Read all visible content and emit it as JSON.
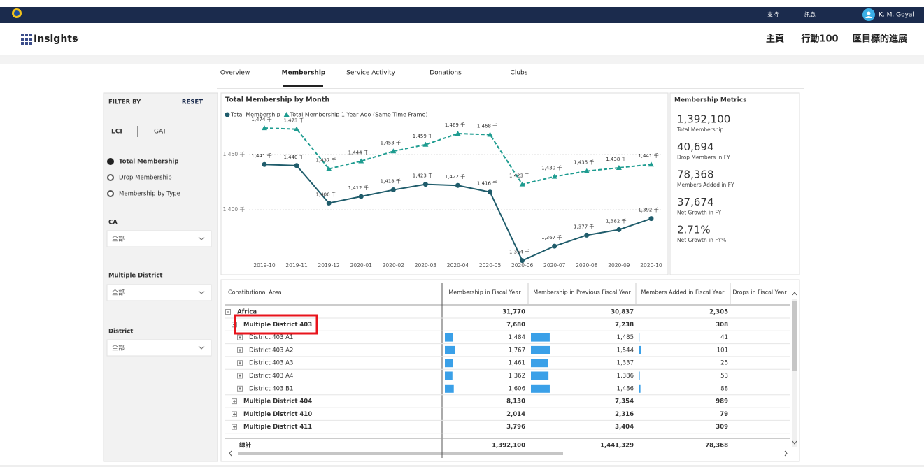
{
  "top_bar": {
    "links": [
      "支持",
      "訊息"
    ],
    "user": "K. M. Goyal"
  },
  "app": {
    "name": "Insights",
    "nav": [
      "主頁",
      "行動100",
      "區目標的進展"
    ]
  },
  "tabs": [
    "Overview",
    "Membership",
    "Service Activity",
    "Donations",
    "Clubs"
  ],
  "filter": {
    "title": "FILTER BY",
    "reset": "RESET",
    "toggle": [
      "LCI",
      "GAT"
    ],
    "options": [
      "Total Membership",
      "Drop Membership",
      "Membership by Type"
    ],
    "dropdowns": [
      {
        "label": "CA",
        "value": "全部"
      },
      {
        "label": "Multiple District",
        "value": "全部"
      },
      {
        "label": "District",
        "value": "全部"
      }
    ]
  },
  "chart_data": {
    "type": "line",
    "title": "Total Membership by Month",
    "categories": [
      "2019-10",
      "2019-11",
      "2019-12",
      "2020-01",
      "2020-02",
      "2020-03",
      "2020-04",
      "2020-05",
      "2020-06",
      "2020-07",
      "2020-08",
      "2020-09",
      "2020-10"
    ],
    "series": [
      {
        "name": "Total Membership",
        "color": "#1f5c6b",
        "marker": "circle",
        "style": "solid",
        "values": [
          1441,
          1440,
          1406,
          1412,
          1418,
          1423,
          1422,
          1416,
          1354,
          1367,
          1377,
          1382,
          1392
        ],
        "value_labels": [
          "1,441 千",
          "1,440 千",
          "1,406 千",
          "1,412 千",
          "1,418 千",
          "1,423 千",
          "1,422 千",
          "1,416 千",
          "1,354 千",
          "1,367 千",
          "1,377 千",
          "1,382 千",
          "1,392 千"
        ]
      },
      {
        "name": "Total Membership 1 Year Ago (Same Time Frame)",
        "color": "#1e9c90",
        "marker": "triangle",
        "style": "dashed",
        "values": [
          1474,
          1473,
          1437,
          1444,
          1453,
          1459,
          1469,
          1468,
          1423,
          1430,
          1435,
          1438,
          1441
        ],
        "value_labels": [
          "1,474 千",
          "1,473 千",
          "1,437 千",
          "1,444 千",
          "1,453 千",
          "1,459 千",
          "1,469 千",
          "1,468 千",
          "1,423 千",
          "1,430 千",
          "1,435 千",
          "1,438 千",
          "1,441 千"
        ]
      }
    ],
    "ylim": [
      1350,
      1485
    ],
    "yticks": [
      {
        "value": 1400,
        "label": "1,400 千"
      },
      {
        "value": 1450,
        "label": "1,450 千"
      }
    ],
    "grid": true
  },
  "metrics": {
    "title": "Membership Metrics",
    "items": [
      {
        "value": "1,392,100",
        "label": "Total Membership"
      },
      {
        "value": "40,694",
        "label": "Drop Members in FY"
      },
      {
        "value": "78,368",
        "label": "Members Added in FY"
      },
      {
        "value": "37,674",
        "label": "Net Growth in FY"
      },
      {
        "value": "2.71%",
        "label": "Net Growth in FY%"
      }
    ]
  },
  "table": {
    "columns": [
      "Constitutional Area",
      "Membership in Fiscal Year",
      "Membership in Previous Fiscal Year",
      "Members Added in Fiscal Year",
      "Drops in Fiscal Year"
    ],
    "rows": [
      {
        "name": "Africa",
        "cells": [
          "31,770",
          "30,837",
          "2,305"
        ],
        "children": [
          {
            "name": "Multiple District 403",
            "cells": [
              "7,680",
              "7,238",
              "308"
            ],
            "children": [
              {
                "name": "District 403 A1",
                "cells": [
                  "1,484",
                  "1,485",
                  "41"
                ]
              },
              {
                "name": "District 403 A2",
                "cells": [
                  "1,767",
                  "1,544",
                  "101"
                ]
              },
              {
                "name": "District 403 A3",
                "cells": [
                  "1,461",
                  "1,337",
                  "25"
                ]
              },
              {
                "name": "District 403 A4",
                "cells": [
                  "1,362",
                  "1,386",
                  "53"
                ]
              },
              {
                "name": "District 403 B1",
                "cells": [
                  "1,606",
                  "1,486",
                  "88"
                ]
              }
            ]
          },
          {
            "name": "Multiple District 404",
            "cells": [
              "8,130",
              "7,354",
              "989"
            ]
          },
          {
            "name": "Multiple District 410",
            "cells": [
              "2,014",
              "2,316",
              "79"
            ]
          },
          {
            "name": "Multiple District 411",
            "cells": [
              "3,796",
              "3,404",
              "309"
            ]
          }
        ]
      }
    ],
    "total": {
      "name": "總計",
      "cells": [
        "1,392,100",
        "1,441,329",
        "78,368"
      ]
    }
  }
}
